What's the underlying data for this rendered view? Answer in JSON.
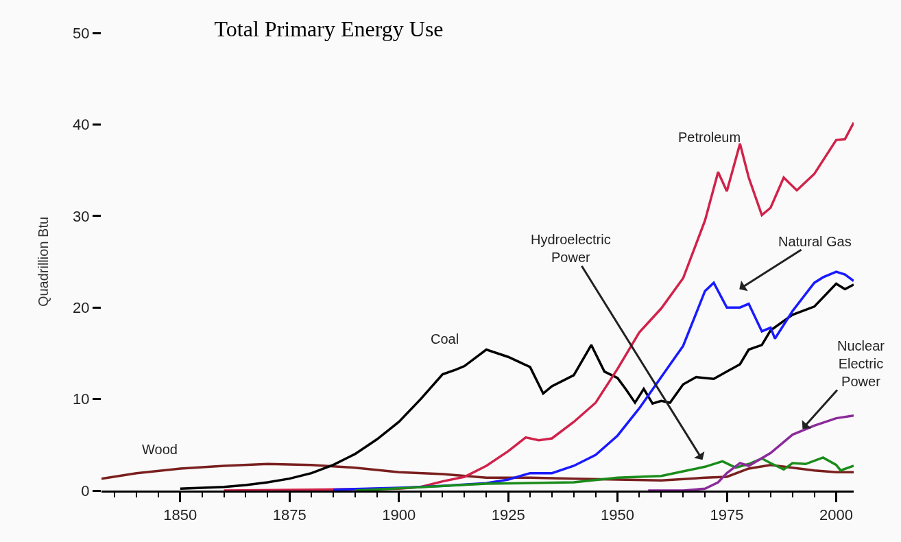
{
  "chart_data": {
    "type": "line",
    "title": "Total Primary Energy Use",
    "ylabel": "Quadrillion Btu",
    "xlim": [
      1832,
      2004
    ],
    "xticks": [
      1850,
      1875,
      1900,
      1925,
      1950,
      1975,
      2000
    ],
    "ylim": [
      0,
      50
    ],
    "yticks": [
      0,
      10,
      20,
      30,
      40,
      50
    ],
    "grid": false,
    "legend": false,
    "marker": "none",
    "line_style": "solid",
    "series": [
      {
        "name": "Wood",
        "color": "#7a1f1f",
        "x": [
          1832,
          1840,
          1850,
          1860,
          1870,
          1880,
          1890,
          1900,
          1910,
          1920,
          1930,
          1940,
          1950,
          1960,
          1970,
          1975,
          1980,
          1985,
          1990,
          1995,
          2000,
          2004
        ],
        "values": [
          1.3,
          1.9,
          2.4,
          2.7,
          2.9,
          2.8,
          2.5,
          2.0,
          1.8,
          1.4,
          1.4,
          1.3,
          1.2,
          1.1,
          1.4,
          1.5,
          2.4,
          2.8,
          2.5,
          2.2,
          2.0,
          2.0
        ]
      },
      {
        "name": "Coal",
        "color": "#000000",
        "x": [
          1850,
          1855,
          1860,
          1865,
          1870,
          1875,
          1880,
          1885,
          1890,
          1895,
          1900,
          1905,
          1910,
          1913,
          1915,
          1920,
          1925,
          1930,
          1933,
          1935,
          1940,
          1944,
          1947,
          1950,
          1952,
          1954,
          1956,
          1958,
          1960,
          1962,
          1965,
          1968,
          1970,
          1972,
          1975,
          1978,
          1980,
          1983,
          1985,
          1990,
          1995,
          2000,
          2002,
          2004
        ],
        "values": [
          0.2,
          0.3,
          0.4,
          0.6,
          0.9,
          1.3,
          1.9,
          2.8,
          4.0,
          5.6,
          7.5,
          10.0,
          12.7,
          13.2,
          13.6,
          15.4,
          14.6,
          13.5,
          10.6,
          11.4,
          12.6,
          15.9,
          13.0,
          12.3,
          11.0,
          9.6,
          11.1,
          9.5,
          9.8,
          9.6,
          11.6,
          12.4,
          12.3,
          12.2,
          13.0,
          13.8,
          15.4,
          15.9,
          17.5,
          19.2,
          20.1,
          22.6,
          22.0,
          22.5
        ]
      },
      {
        "name": "Petroleum",
        "color": "#d1224a",
        "x": [
          1860,
          1880,
          1900,
          1905,
          1910,
          1915,
          1920,
          1925,
          1929,
          1932,
          1935,
          1940,
          1945,
          1950,
          1955,
          1960,
          1965,
          1970,
          1973,
          1975,
          1978,
          1980,
          1983,
          1985,
          1988,
          1991,
          1995,
          2000,
          2002,
          2004
        ],
        "values": [
          0.0,
          0.1,
          0.2,
          0.4,
          1.0,
          1.5,
          2.7,
          4.3,
          5.8,
          5.5,
          5.7,
          7.5,
          9.6,
          13.3,
          17.3,
          19.9,
          23.2,
          29.5,
          34.8,
          32.7,
          37.9,
          34.2,
          30.1,
          30.9,
          34.2,
          32.8,
          34.6,
          38.3,
          38.4,
          40.2
        ]
      },
      {
        "name": "Natural Gas",
        "color": "#1a1aff",
        "x": [
          1885,
          1900,
          1910,
          1920,
          1925,
          1930,
          1935,
          1940,
          1945,
          1950,
          1955,
          1960,
          1965,
          1970,
          1972,
          1975,
          1978,
          1980,
          1983,
          1985,
          1986,
          1990,
          1995,
          1997,
          2000,
          2002,
          2004
        ],
        "values": [
          0.1,
          0.3,
          0.5,
          0.8,
          1.2,
          1.9,
          1.9,
          2.7,
          3.9,
          6.0,
          9.0,
          12.4,
          15.8,
          21.8,
          22.7,
          20.0,
          20.0,
          20.4,
          17.4,
          17.8,
          16.6,
          19.6,
          22.7,
          23.3,
          23.9,
          23.6,
          22.9
        ]
      },
      {
        "name": "Hydroelectric Power",
        "color": "#1a8c1a",
        "x": [
          1890,
          1900,
          1920,
          1940,
          1950,
          1960,
          1965,
          1970,
          1974,
          1977,
          1980,
          1983,
          1985,
          1988,
          1990,
          1993,
          1997,
          2000,
          2001,
          2004
        ],
        "values": [
          0.0,
          0.25,
          0.75,
          0.9,
          1.4,
          1.6,
          2.1,
          2.6,
          3.2,
          2.5,
          2.9,
          3.5,
          3.0,
          2.3,
          3.0,
          2.9,
          3.6,
          2.8,
          2.2,
          2.7
        ]
      },
      {
        "name": "Nuclear Electric Power",
        "color": "#8b2a9b",
        "x": [
          1957,
          1965,
          1970,
          1973,
          1975,
          1978,
          1980,
          1985,
          1990,
          1995,
          2000,
          2004
        ],
        "values": [
          0.0,
          0.0,
          0.2,
          0.9,
          1.9,
          3.0,
          2.7,
          4.1,
          6.1,
          7.1,
          7.9,
          8.2
        ]
      }
    ]
  }
}
